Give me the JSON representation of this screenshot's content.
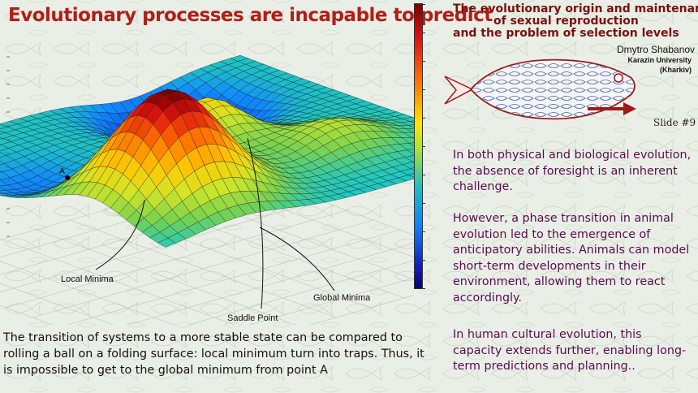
{
  "title": "Evolutionary processes are incapable to predict",
  "slide_title": {
    "line1": "The evolutionary origin and maintenance",
    "line2": "of sexual reproduction",
    "line3": "and the problem        of selection levels"
  },
  "author": "Dmytro Shabanov",
  "university": {
    "line1": "Karazin University",
    "line2": "(Kharkiv)"
  },
  "slide_number": "Slide #9",
  "paragraphs": [
    "In both physical and biological evolution, the absence of foresight is an inherent challenge.",
    "However, a phase transition in animal evolution led to the emergence of anticipatory abilities. Animals can model short-term developments in their environment, allowing them to react accordingly.",
    "In human cultural evolution, this capacity extends further, enabling long-term predictions and planning.."
  ],
  "plot_labels": {
    "local_minima": "Local Minima",
    "saddle_point": "Saddle Point",
    "global_minima": "Global Minima",
    "point_a": "A"
  },
  "bottom_text": "The transition of systems to a more stable state can be compared to rolling a ball on a folding surface: local minimum turn into traps. Thus, it is impossible to get to the global minimum from point A",
  "colors": {
    "title": "#b01e18",
    "paragraph": "#5a0a50",
    "background": "#e9efe6"
  }
}
